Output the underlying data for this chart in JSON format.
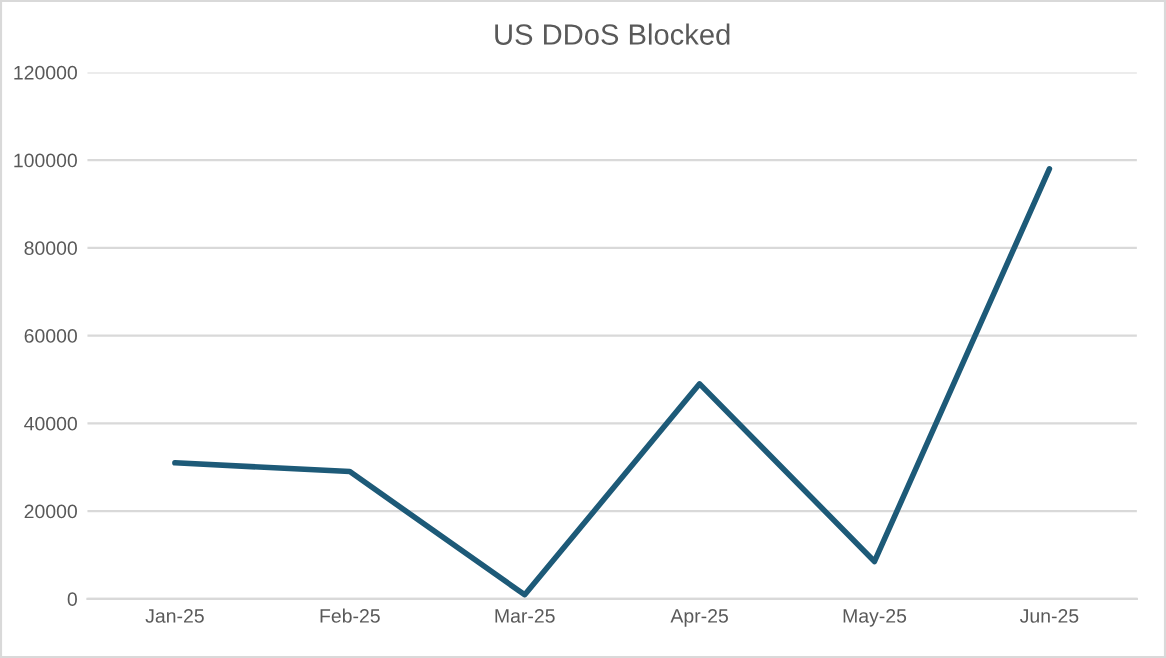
{
  "chart_data": {
    "type": "line",
    "title": "US DDoS Blocked",
    "categories": [
      "Jan-25",
      "Feb-25",
      "Mar-25",
      "Apr-25",
      "May-25",
      "Jun-25"
    ],
    "series": [
      {
        "color": "#1d5a78",
        "values": [
          31000,
          29000,
          900,
          49000,
          8500,
          98000
        ]
      }
    ],
    "ylim": [
      0,
      120000
    ],
    "yticks": [
      0,
      20000,
      40000,
      60000,
      80000,
      100000,
      120000
    ],
    "grid": "y",
    "marker": "none",
    "line_style": "solid"
  }
}
